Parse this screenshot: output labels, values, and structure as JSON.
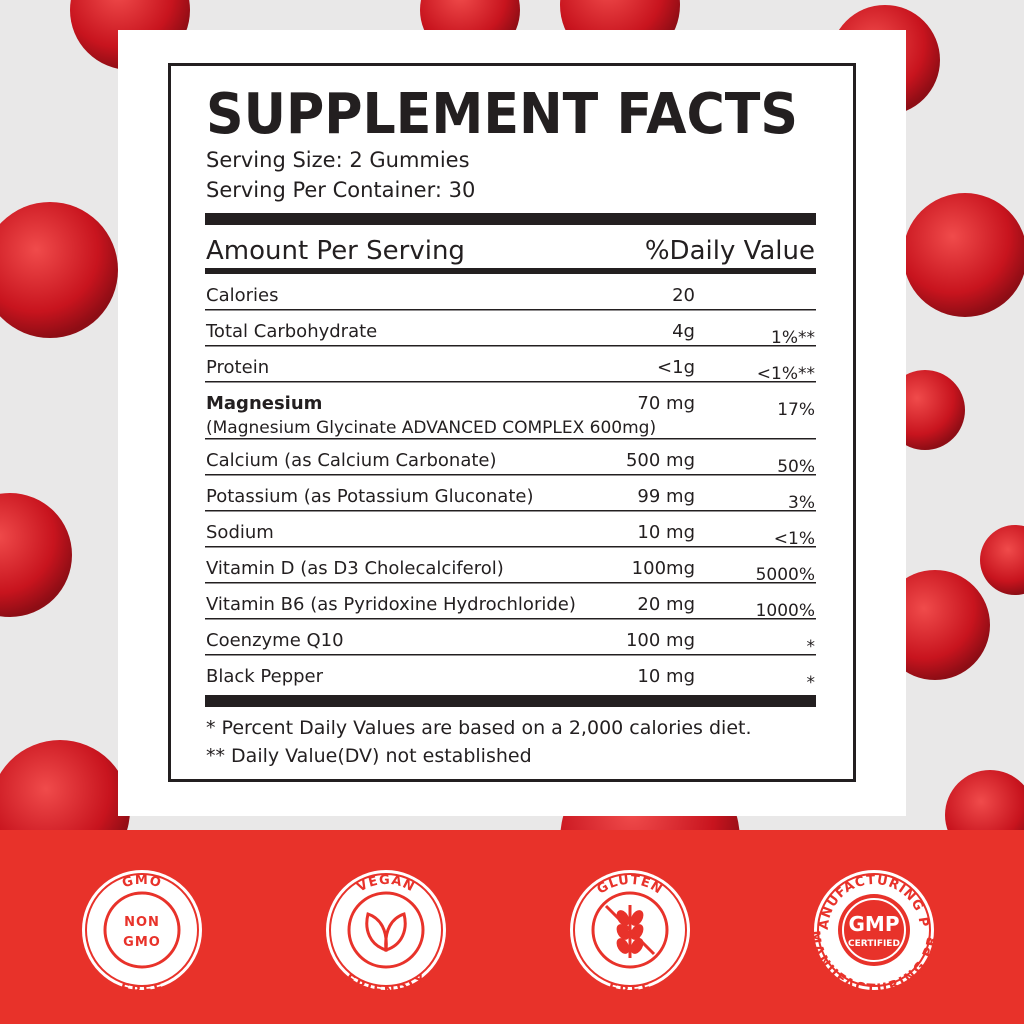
{
  "label": {
    "title": "SUPPLEMENT FACTS",
    "serving_size": "Serving Size: 2 Gummies",
    "servings_per_container": "Serving Per Container: 30",
    "header_left": "Amount Per Serving",
    "header_right": "%Daily Value",
    "rows": [
      {
        "name": "Calories",
        "amount": "20"
      },
      {
        "name": "Total Carbohydrate",
        "amount": "4g",
        "dv": "1%**"
      },
      {
        "name": "Protein",
        "amount": "<1g",
        "dv": "<1%**"
      },
      {
        "name": "Magnesium",
        "detail": "(Magnesium Glycinate ADVANCED COMPLEX 600mg)",
        "amount": "70 mg",
        "dv": "17%"
      },
      {
        "name": "Calcium (as Calcium Carbonate)",
        "amount": "500 mg",
        "dv": "50%"
      },
      {
        "name": "Potassium (as Potassium Gluconate)",
        "amount": "99 mg",
        "dv": "3%"
      },
      {
        "name": "Sodium",
        "amount": "10 mg",
        "dv": "<1%"
      },
      {
        "name": "Vitamin D (as D3 Cholecalciferol)",
        "amount": "100mg",
        "dv": "5000%"
      },
      {
        "name": "Vitamin B6 (as Pyridoxine Hydrochloride)",
        "amount": "20 mg",
        "dv": "1000%"
      },
      {
        "name": "Coenzyme Q10",
        "amount": "100 mg",
        "dv": "*"
      },
      {
        "name": "Black Pepper",
        "amount": "10 mg",
        "dv": "*"
      }
    ],
    "footnote_1": "* Percent Daily Values are based on a 2,000 calories diet.",
    "footnote_2": "** Daily Value(DV) not established"
  },
  "badges": [
    {
      "top_text": "GMO",
      "center_1": "NON",
      "center_2": "GMO",
      "bottom_text": "FREE"
    },
    {
      "top_text": "VEGAN",
      "bottom_text": "FRIENDLY"
    },
    {
      "top_text": "GLUTEN",
      "bottom_text": "FREE"
    },
    {
      "top_text": "GOOD MANUFACTURING PRACTICE",
      "center_1": "GMP",
      "center_2": "CERTIFIED",
      "bottom_text": "GOOD MANUFACTURING PRACTICE"
    }
  ]
}
